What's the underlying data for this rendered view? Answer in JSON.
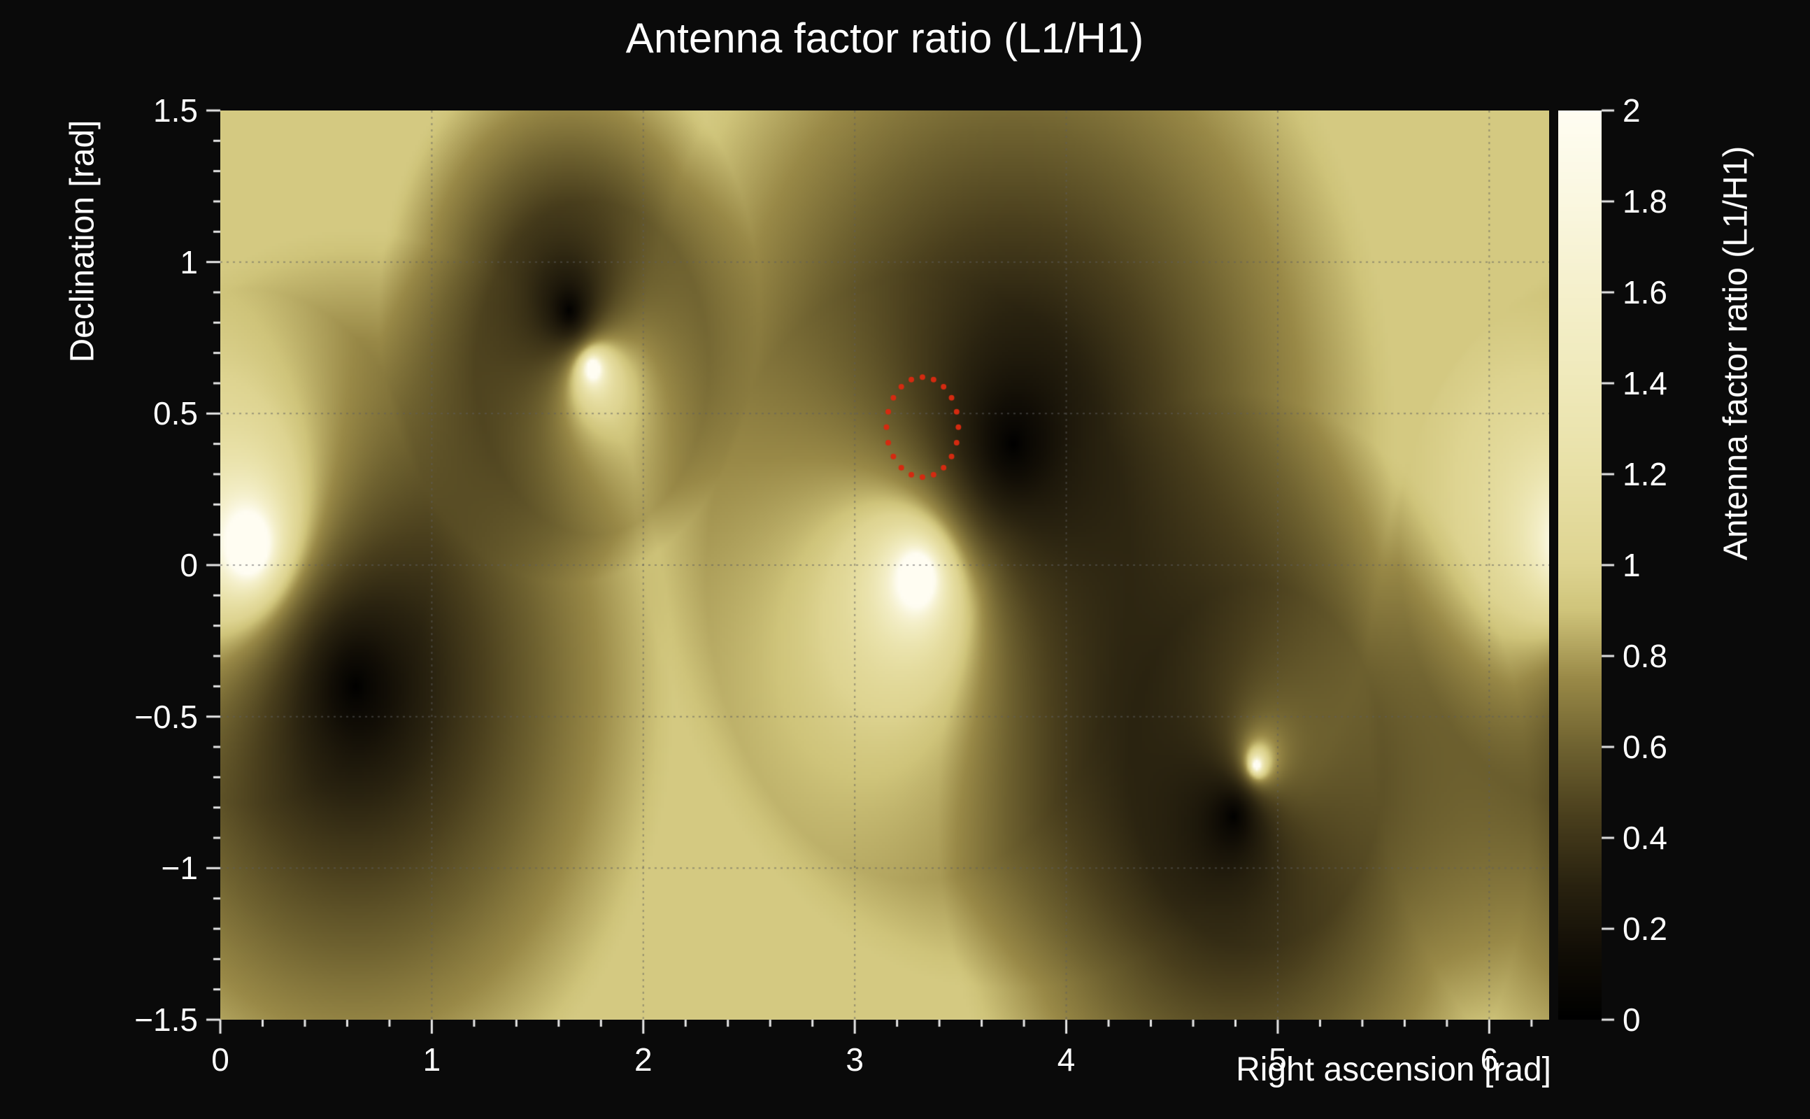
{
  "figure": {
    "background": "#0a0a0a",
    "text_color": "#ffffff",
    "tick_color": "#e8e8e8"
  },
  "chart_data": {
    "type": "heatmap",
    "title": "Antenna factor ratio (L1/H1)",
    "xlabel": "Right ascension [rad]",
    "ylabel": "Declination [rad]",
    "colorbar_label": "Antenna factor ratio (L1/H1)",
    "x_range": [
      0,
      6.2832
    ],
    "y_range": [
      -1.5,
      1.5
    ],
    "z_range": [
      0,
      2
    ],
    "x_major_ticks": [
      0,
      1,
      2,
      3,
      4,
      5,
      6
    ],
    "x_tick_labels": [
      "0",
      "1",
      "2",
      "3",
      "4",
      "5",
      "6"
    ],
    "x_minor_step": 0.2,
    "y_major_ticks": [
      -1.5,
      -1,
      -0.5,
      0,
      0.5,
      1,
      1.5
    ],
    "y_tick_labels": [
      "−1.5",
      "−1",
      "−0.5",
      "0",
      "0.5",
      "1",
      "1.5"
    ],
    "y_minor_step": 0.1,
    "colorbar_ticks": [
      0,
      0.2,
      0.4,
      0.6,
      0.8,
      1,
      1.2,
      1.4,
      1.6,
      1.8,
      2
    ],
    "colorbar_tick_labels": [
      "0",
      "0.2",
      "0.4",
      "0.6",
      "0.8",
      "1",
      "1.2",
      "1.4",
      "1.6",
      "1.8",
      "2"
    ],
    "grid": {
      "x": [
        1,
        2,
        3,
        4,
        5,
        6
      ],
      "y": [
        -1,
        -0.5,
        0,
        0.5,
        1
      ],
      "style": "dotted",
      "color": "#5f5f5f"
    },
    "baseline": 0.93,
    "dark_exponent": 0.8,
    "bright_exponent": 0.65,
    "l1_nulls": [
      {
        "ra": 1.65,
        "dec": 0.84,
        "skirt": 0.9
      },
      {
        "ra": 3.75,
        "dec": 0.4,
        "skirt": 1.8
      },
      {
        "ra": 0.64,
        "dec": -0.4,
        "skirt": 1.5
      },
      {
        "ra": 4.79,
        "dec": -0.83,
        "skirt": 1.4
      }
    ],
    "h1_nulls": [
      {
        "ra": 1.76,
        "dec": 0.65,
        "skirt": 0.55
      },
      {
        "ra": 0.14,
        "dec": 0.06,
        "skirt": 0.85
      },
      {
        "ra": 3.3,
        "dec": -0.04,
        "skirt": 1.0
      },
      {
        "ra": 4.9,
        "dec": -0.66,
        "skirt": 0.6
      }
    ],
    "colormap": [
      {
        "t": 0.0,
        "color": "#000000"
      },
      {
        "t": 0.15,
        "color": "#120e06"
      },
      {
        "t": 0.3,
        "color": "#2a2310"
      },
      {
        "t": 0.45,
        "color": "#4a3f1d"
      },
      {
        "t": 0.6,
        "color": "#6f6230"
      },
      {
        "t": 0.75,
        "color": "#998947"
      },
      {
        "t": 0.9,
        "color": "#cfc47a"
      },
      {
        "t": 1.0,
        "color": "#ded491"
      },
      {
        "t": 1.2,
        "color": "#e8e0a6"
      },
      {
        "t": 1.4,
        "color": "#efe9ba"
      },
      {
        "t": 1.6,
        "color": "#f5f0cc"
      },
      {
        "t": 1.8,
        "color": "#faf7e0"
      },
      {
        "t": 2.0,
        "color": "#fffdf2"
      }
    ],
    "marker_circle": {
      "ra": 3.32,
      "dec": 0.455,
      "radius_ra": 0.17,
      "radius_dec": 0.165,
      "color": "#d42a10",
      "dots": 20,
      "dot_radius": 4
    }
  }
}
